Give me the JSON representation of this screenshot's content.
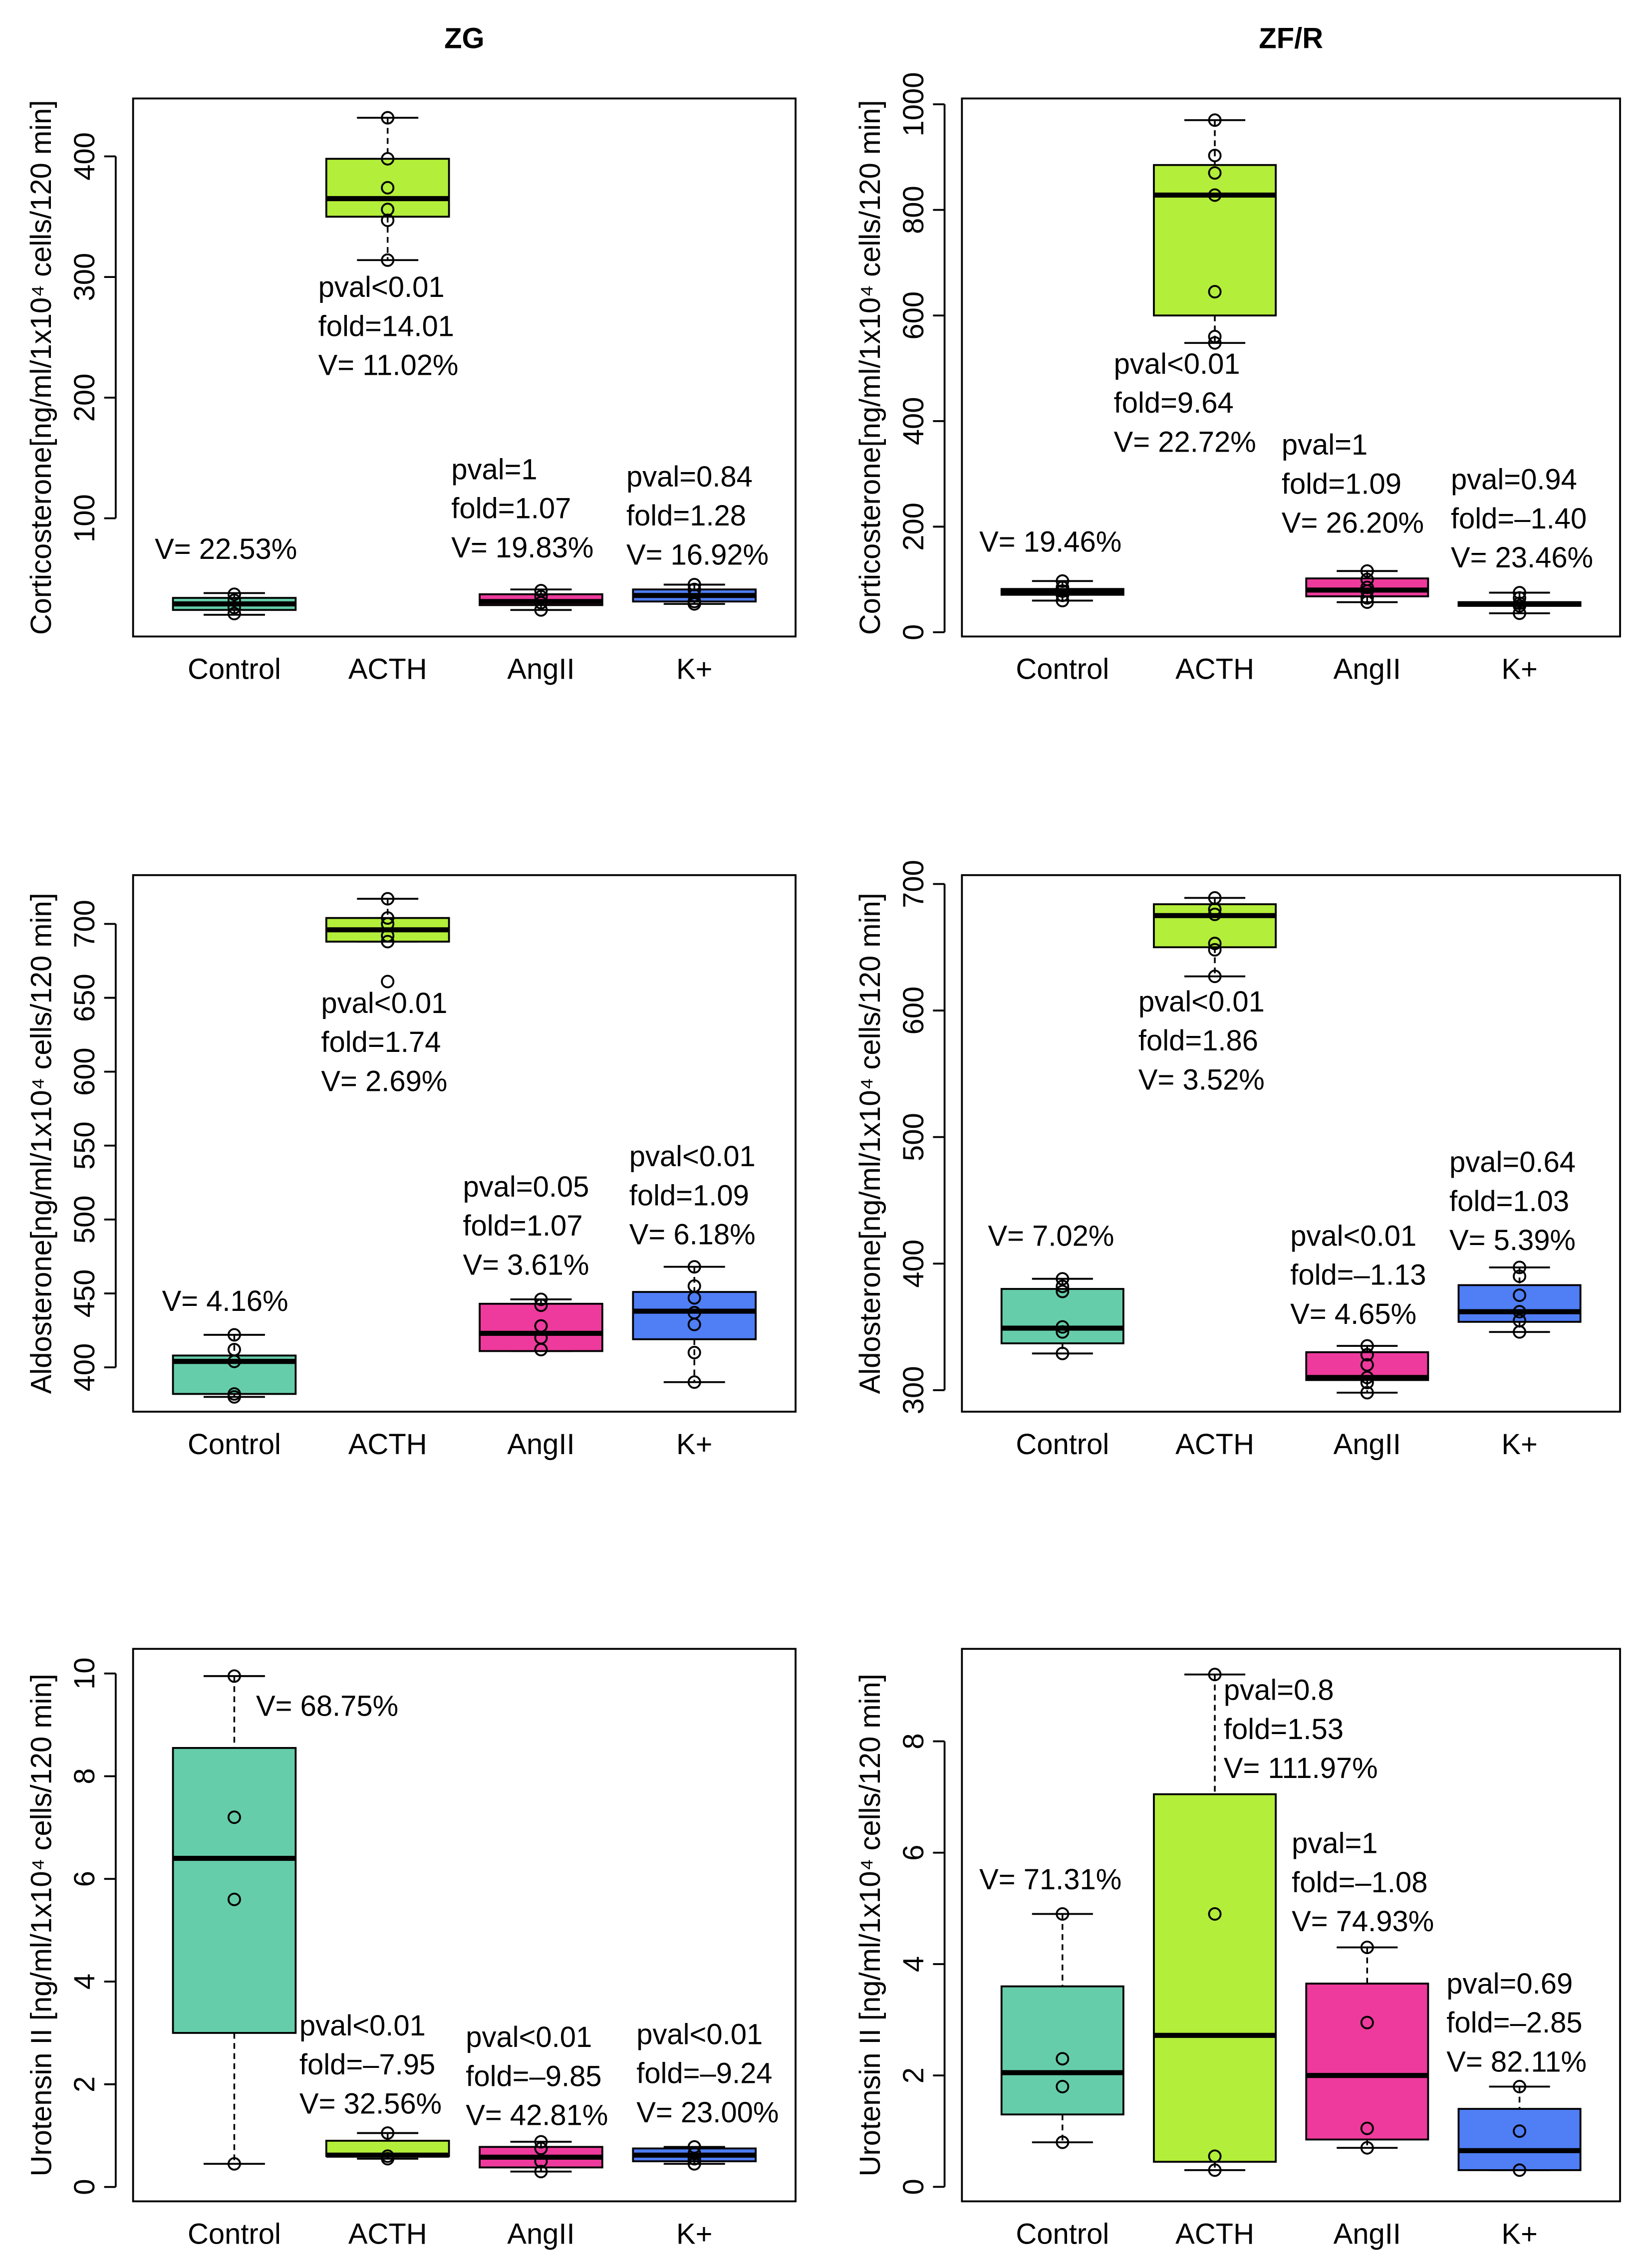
{
  "chart_data": [
    {
      "type": "box",
      "title": "ZG",
      "ylabel": "Corticosterone[ng/ml/1x10⁴ cells/120 min]",
      "categories": [
        "Control",
        "ACTH",
        "AngII",
        "K+"
      ],
      "colors": [
        "#66cdaa",
        "#b3ee3a",
        "#ee3a9c",
        "#4f7ef5"
      ],
      "ylim": [
        2,
        448
      ],
      "yticks": [
        100,
        200,
        300,
        400
      ],
      "boxes": [
        {
          "min": 20,
          "q1": 24,
          "median": 29,
          "q3": 34,
          "max": 38,
          "points": [
            37,
            32,
            26,
            21
          ]
        },
        {
          "min": 314,
          "q1": 350,
          "median": 365,
          "q3": 398,
          "max": 432,
          "points": [
            432,
            398,
            374,
            356,
            347,
            314
          ]
        },
        {
          "min": 24,
          "q1": 28,
          "median": 31,
          "q3": 37,
          "max": 41,
          "points": [
            40,
            35,
            30,
            24
          ]
        },
        {
          "min": 29,
          "q1": 31,
          "median": 36,
          "q3": 41,
          "max": 45,
          "points": [
            45,
            41,
            36,
            31,
            29
          ]
        }
      ],
      "annotations": [
        [
          "V= 22.53%"
        ],
        [
          "pval<0.01",
          "fold=14.01",
          "V= 11.02%"
        ],
        [
          "pval=1",
          "fold=1.07",
          "V= 19.83%"
        ],
        [
          "pval=0.84",
          "fold=1.28",
          "V= 16.92%"
        ]
      ]
    },
    {
      "type": "box",
      "title": "ZF/R",
      "ylabel": "Corticosterone[ng/ml/1x10⁴ cells/120 min]",
      "categories": [
        "Control",
        "ACTH",
        "AngII",
        "K+"
      ],
      "colors": [
        "#66cdaa",
        "#b3ee3a",
        "#ee3a9c",
        "#4f7ef5"
      ],
      "ylim": [
        -8,
        1011
      ],
      "yticks": [
        0,
        200,
        400,
        600,
        800,
        1000
      ],
      "boxes": [
        {
          "min": 60,
          "q1": 71,
          "median": 76,
          "q3": 82,
          "max": 97,
          "points": [
            97,
            85,
            78,
            70,
            60
          ]
        },
        {
          "min": 548,
          "q1": 600,
          "median": 828,
          "q3": 885,
          "max": 970,
          "points": [
            970,
            903,
            870,
            828,
            645,
            560,
            548
          ]
        },
        {
          "min": 57,
          "q1": 68,
          "median": 80,
          "q3": 102,
          "max": 116,
          "points": [
            116,
            100,
            85,
            78,
            65,
            57
          ]
        },
        {
          "min": 36,
          "q1": 50,
          "median": 54,
          "q3": 57,
          "max": 75,
          "points": [
            75,
            65,
            55,
            50,
            36
          ]
        }
      ],
      "annotations": [
        [
          "V= 19.46%"
        ],
        [
          "pval<0.01",
          "fold=9.64",
          "V= 22.72%"
        ],
        [
          "pval=1",
          "fold=1.09",
          "V= 26.20%"
        ],
        [
          "pval=0.94",
          "fold=–1.40",
          "V= 23.46%"
        ]
      ]
    },
    {
      "type": "box",
      "ylabel": "Aldosterone[ng/ml/1x10⁴ cells/120 min]",
      "categories": [
        "Control",
        "ACTH",
        "AngII",
        "K+"
      ],
      "colors": [
        "#66cdaa",
        "#b3ee3a",
        "#ee3a9c",
        "#4f7ef5"
      ],
      "ylim": [
        370,
        733
      ],
      "yticks": [
        400,
        450,
        500,
        550,
        600,
        650,
        700
      ],
      "boxes": [
        {
          "min": 380,
          "q1": 382,
          "median": 404,
          "q3": 408,
          "max": 422,
          "points": [
            422,
            412,
            404,
            382,
            380
          ]
        },
        {
          "min": 688,
          "q1": 688,
          "median": 696,
          "q3": 704,
          "max": 717,
          "points": [
            717,
            704,
            700,
            692,
            688,
            661
          ]
        },
        {
          "min": 411,
          "q1": 411,
          "median": 423,
          "q3": 443,
          "max": 446,
          "points": [
            446,
            442,
            428,
            420,
            412
          ]
        },
        {
          "min": 390,
          "q1": 419,
          "median": 438,
          "q3": 451,
          "max": 468,
          "points": [
            468,
            455,
            447,
            437,
            429,
            410,
            390
          ]
        }
      ],
      "annotations": [
        [
          "V= 4.16%"
        ],
        [
          "pval<0.01",
          "fold=1.74",
          "V= 2.69%"
        ],
        [
          "pval=0.05",
          "fold=1.07",
          "V= 3.61%"
        ],
        [
          "pval<0.01",
          "fold=1.09",
          "V= 6.18%"
        ]
      ]
    },
    {
      "type": "box",
      "ylabel": "Aldosterone[ng/ml/1x10⁴ cells/120 min]",
      "categories": [
        "Control",
        "ACTH",
        "AngII",
        "K+"
      ],
      "colors": [
        "#66cdaa",
        "#b3ee3a",
        "#ee3a9c",
        "#4f7ef5"
      ],
      "ylim": [
        283,
        707
      ],
      "yticks": [
        300,
        400,
        500,
        600,
        700
      ],
      "boxes": [
        {
          "min": 329,
          "q1": 337,
          "median": 349,
          "q3": 380,
          "max": 388,
          "points": [
            388,
            382,
            378,
            350,
            346,
            329
          ]
        },
        {
          "min": 627,
          "q1": 650,
          "median": 675,
          "q3": 684,
          "max": 689,
          "points": [
            689,
            680,
            676,
            653,
            648,
            627
          ]
        },
        {
          "min": 298,
          "q1": 308,
          "median": 310,
          "q3": 330,
          "max": 335,
          "points": [
            335,
            328,
            320,
            310,
            306,
            298
          ]
        },
        {
          "min": 346,
          "q1": 354,
          "median": 362,
          "q3": 383,
          "max": 397,
          "points": [
            397,
            390,
            375,
            362,
            355,
            346
          ]
        }
      ],
      "annotations": [
        [
          "V= 7.02%"
        ],
        [
          "pval<0.01",
          "fold=1.86",
          "V= 3.52%"
        ],
        [
          "pval<0.01",
          "fold=–1.13",
          "V= 4.65%"
        ],
        [
          "pval=0.64",
          "fold=1.03",
          "V= 5.39%"
        ]
      ]
    },
    {
      "type": "box",
      "ylabel": "Urotensin II [ng/ml/1x10⁴ cells/120 min]",
      "categories": [
        "Control",
        "ACTH",
        "AngII",
        "K+"
      ],
      "colors": [
        "#66cdaa",
        "#b3ee3a",
        "#ee3a9c",
        "#4f7ef5"
      ],
      "ylim": [
        -0.28,
        10.48
      ],
      "yticks": [
        0,
        2,
        4,
        6,
        8,
        10
      ],
      "boxes": [
        {
          "min": 0.45,
          "q1": 3.0,
          "median": 6.4,
          "q3": 8.55,
          "max": 9.95,
          "points": [
            9.95,
            7.2,
            5.6,
            0.45
          ]
        },
        {
          "min": 0.55,
          "q1": 0.6,
          "median": 0.62,
          "q3": 0.9,
          "max": 1.05,
          "points": [
            1.05,
            0.6,
            0.55
          ]
        },
        {
          "min": 0.3,
          "q1": 0.38,
          "median": 0.58,
          "q3": 0.78,
          "max": 0.88,
          "points": [
            0.88,
            0.75,
            0.5,
            0.3
          ]
        },
        {
          "min": 0.45,
          "q1": 0.5,
          "median": 0.62,
          "q3": 0.75,
          "max": 0.78,
          "points": [
            0.78,
            0.65,
            0.55,
            0.45
          ]
        }
      ],
      "annotations": [
        [
          "V= 68.75%"
        ],
        [
          "pval<0.01",
          "fold=–7.95",
          "V= 32.56%"
        ],
        [
          "pval<0.01",
          "fold=–9.85",
          "V= 42.81%"
        ],
        [
          "pval<0.01",
          "fold=–9.24",
          "V= 23.00%"
        ]
      ]
    },
    {
      "type": "box",
      "ylabel": "Urotensin II [ng/ml/1x10⁴ cells/120 min]",
      "categories": [
        "Control",
        "ACTH",
        "AngII",
        "K+"
      ],
      "colors": [
        "#66cdaa",
        "#b3ee3a",
        "#ee3a9c",
        "#4f7ef5"
      ],
      "ylim": [
        -0.26,
        9.66
      ],
      "yticks": [
        0,
        2,
        4,
        6,
        8
      ],
      "boxes": [
        {
          "min": 0.8,
          "q1": 1.3,
          "median": 2.05,
          "q3": 3.6,
          "max": 4.9,
          "points": [
            4.9,
            2.3,
            1.8,
            0.8
          ]
        },
        {
          "min": 0.3,
          "q1": 0.45,
          "median": 2.72,
          "q3": 7.05,
          "max": 9.2,
          "points": [
            9.2,
            4.9,
            0.55,
            0.3
          ]
        },
        {
          "min": 0.7,
          "q1": 0.85,
          "median": 2.0,
          "q3": 3.65,
          "max": 4.3,
          "points": [
            4.3,
            2.95,
            1.05,
            0.7
          ]
        },
        {
          "min": 0.3,
          "q1": 0.3,
          "median": 0.65,
          "q3": 1.4,
          "max": 1.8,
          "points": [
            1.8,
            1.0,
            0.3
          ]
        }
      ],
      "annotations": [
        [
          "V= 71.31%"
        ],
        [
          "pval=0.8",
          "fold=1.53",
          "V= 111.97%"
        ],
        [
          "pval=1",
          "fold=–1.08",
          "V= 74.93%"
        ],
        [
          "pval=0.69",
          "fold=–2.85",
          "V= 82.11%"
        ]
      ]
    }
  ]
}
